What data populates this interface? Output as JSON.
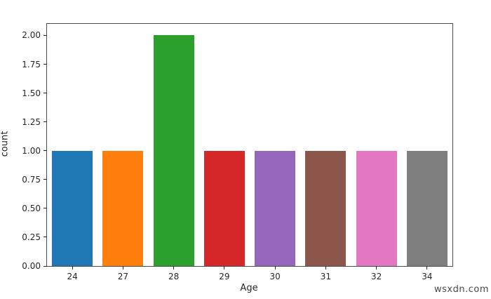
{
  "chart_data": {
    "type": "bar",
    "title": "",
    "xlabel": "Age",
    "ylabel": "count",
    "categories": [
      "24",
      "27",
      "28",
      "29",
      "30",
      "31",
      "32",
      "34"
    ],
    "values": [
      1,
      1,
      2,
      1,
      1,
      1,
      1,
      1
    ],
    "bar_colors": [
      "#1f77b4",
      "#ff7f0e",
      "#2ca02c",
      "#d62728",
      "#9467bd",
      "#8c564b",
      "#e377c2",
      "#7f7f7f"
    ],
    "ylim": [
      0,
      2.1
    ],
    "ytick_values": [
      0,
      0.25,
      0.5,
      0.75,
      1.0,
      1.25,
      1.5,
      1.75,
      2.0
    ],
    "ytick_labels": [
      "0.00",
      "0.25",
      "0.50",
      "0.75",
      "1.00",
      "1.25",
      "1.50",
      "1.75",
      "2.00"
    ],
    "bar_rel_width": 0.8,
    "grid": false,
    "legend_position": "none",
    "spine_color": "#4d4d4d",
    "text_color": "#262626"
  },
  "watermark": "wsxdn.com"
}
